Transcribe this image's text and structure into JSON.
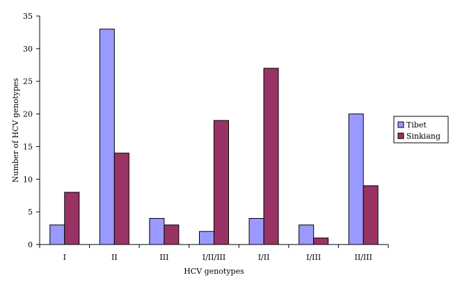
{
  "chart_data": {
    "type": "bar",
    "title": "",
    "xlabel": "HCV genotypes",
    "ylabel": "Number of HCV genotypes",
    "categories": [
      "I",
      "II",
      "III",
      "I/II/III",
      "I/II",
      "I/III",
      "II/III"
    ],
    "series": [
      {
        "name": "Tibet",
        "values": [
          3,
          33,
          4,
          2,
          4,
          3,
          20
        ],
        "color": "#9999ff"
      },
      {
        "name": "Sinkiang",
        "values": [
          8,
          14,
          3,
          19,
          27,
          1,
          9
        ],
        "color": "#993366"
      }
    ],
    "ylim": [
      0,
      35
    ],
    "yticks": [
      0,
      5,
      10,
      15,
      20,
      25,
      30,
      35
    ],
    "ytick_labels": [
      "0",
      "5",
      "10",
      "15",
      "20",
      "25",
      "30",
      "35"
    ],
    "grid": false,
    "legend_position": "right"
  }
}
